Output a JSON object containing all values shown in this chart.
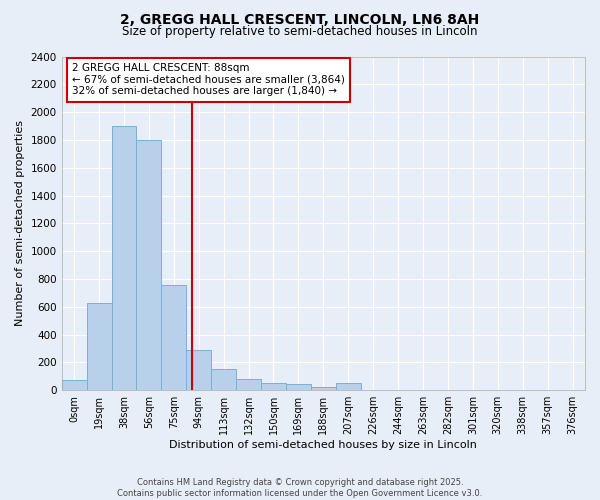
{
  "title_line1": "2, GREGG HALL CRESCENT, LINCOLN, LN6 8AH",
  "title_line2": "Size of property relative to semi-detached houses in Lincoln",
  "xlabel": "Distribution of semi-detached houses by size in Lincoln",
  "ylabel": "Number of semi-detached properties",
  "categories": [
    "0sqm",
    "19sqm",
    "38sqm",
    "56sqm",
    "75sqm",
    "94sqm",
    "113sqm",
    "132sqm",
    "150sqm",
    "169sqm",
    "188sqm",
    "207sqm",
    "226sqm",
    "244sqm",
    "263sqm",
    "282sqm",
    "301sqm",
    "320sqm",
    "338sqm",
    "357sqm",
    "376sqm"
  ],
  "values": [
    75,
    630,
    1900,
    1800,
    760,
    290,
    155,
    80,
    55,
    45,
    25,
    50,
    0,
    0,
    0,
    0,
    0,
    0,
    0,
    0,
    0
  ],
  "bar_color": "#B8D0EA",
  "bar_edge_color": "#7AAFD4",
  "vline_x": 4.72,
  "vline_color": "#CC0000",
  "annotation_text": "2 GREGG HALL CRESCENT: 88sqm\n← 67% of semi-detached houses are smaller (3,864)\n32% of semi-detached houses are larger (1,840) →",
  "annotation_box_color": "#CC0000",
  "ylim": [
    0,
    2400
  ],
  "yticks": [
    0,
    200,
    400,
    600,
    800,
    1000,
    1200,
    1400,
    1600,
    1800,
    2000,
    2200,
    2400
  ],
  "footnote": "Contains HM Land Registry data © Crown copyright and database right 2025.\nContains public sector information licensed under the Open Government Licence v3.0.",
  "bg_color": "#E8EEF8",
  "plot_bg_color": "#E8EEF8",
  "grid_color": "#FFFFFF"
}
